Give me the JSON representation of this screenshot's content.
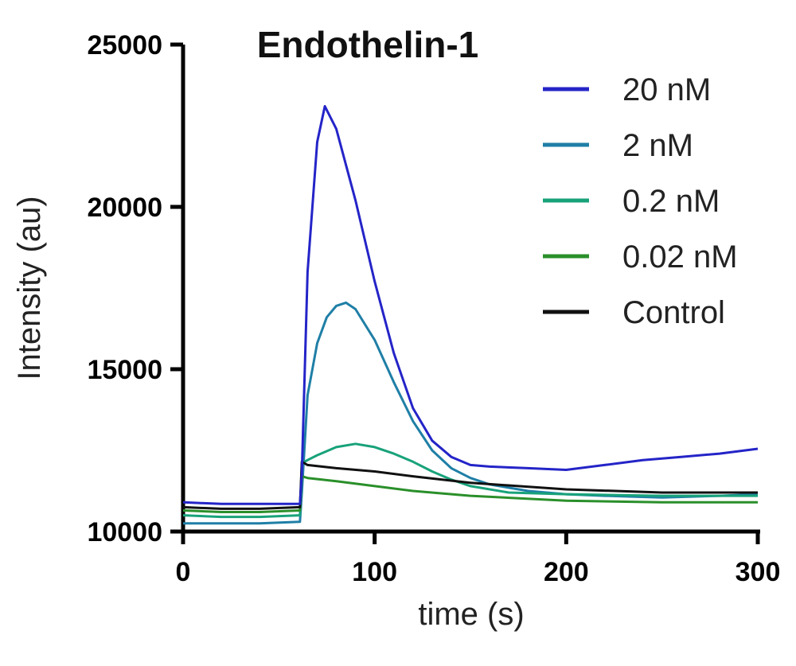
{
  "chart_data": {
    "type": "line",
    "title": "Endothelin-1",
    "xlabel": "time (s)",
    "ylabel": "Intensity (au)",
    "xlim": [
      0,
      300
    ],
    "ylim": [
      10000,
      25000
    ],
    "xticks": [
      0,
      100,
      200,
      300
    ],
    "yticks": [
      10000,
      15000,
      20000,
      25000
    ],
    "grid": false,
    "legend_position": "top-right",
    "series": [
      {
        "name": "20 nM",
        "color": "#2424c8",
        "x": [
          0,
          20,
          40,
          61,
          62,
          65,
          70,
          74,
          80,
          90,
          100,
          110,
          120,
          130,
          140,
          150,
          160,
          180,
          200,
          220,
          240,
          260,
          280,
          300
        ],
        "y": [
          10900,
          10850,
          10850,
          10850,
          11800,
          18000,
          22000,
          23100,
          22400,
          20200,
          17700,
          15500,
          13800,
          12800,
          12300,
          12050,
          12000,
          11950,
          11900,
          12050,
          12200,
          12300,
          12400,
          12550
        ]
      },
      {
        "name": "2 nM",
        "color": "#1f7fa6",
        "x": [
          0,
          20,
          40,
          61,
          62,
          65,
          70,
          75,
          80,
          85,
          90,
          100,
          110,
          120,
          130,
          140,
          150,
          160,
          180,
          200,
          220,
          250,
          280,
          300
        ],
        "y": [
          10250,
          10250,
          10250,
          10300,
          11200,
          14200,
          15800,
          16600,
          16950,
          17050,
          16850,
          15900,
          14600,
          13400,
          12500,
          11950,
          11650,
          11450,
          11250,
          11150,
          11100,
          11050,
          11100,
          11150
        ]
      },
      {
        "name": "0.2 nM",
        "color": "#18a27a",
        "x": [
          0,
          20,
          40,
          61,
          62,
          65,
          70,
          80,
          90,
          100,
          110,
          120,
          130,
          140,
          150,
          170,
          200,
          250,
          300
        ],
        "y": [
          10500,
          10450,
          10450,
          10500,
          12100,
          12200,
          12350,
          12600,
          12700,
          12600,
          12400,
          12150,
          11850,
          11600,
          11400,
          11200,
          11150,
          11100,
          11100
        ]
      },
      {
        "name": "0.02 nM",
        "color": "#2a8f2a",
        "x": [
          0,
          20,
          40,
          61,
          62,
          65,
          80,
          100,
          120,
          150,
          200,
          250,
          300
        ],
        "y": [
          10650,
          10600,
          10600,
          10650,
          11700,
          11650,
          11550,
          11400,
          11250,
          11100,
          10950,
          10900,
          10900
        ]
      },
      {
        "name": "Control",
        "color": "#111111",
        "x": [
          0,
          20,
          40,
          61,
          62,
          65,
          80,
          100,
          120,
          150,
          200,
          250,
          300
        ],
        "y": [
          10750,
          10700,
          10700,
          10750,
          12150,
          12050,
          11950,
          11850,
          11700,
          11500,
          11300,
          11200,
          11200
        ]
      }
    ]
  }
}
